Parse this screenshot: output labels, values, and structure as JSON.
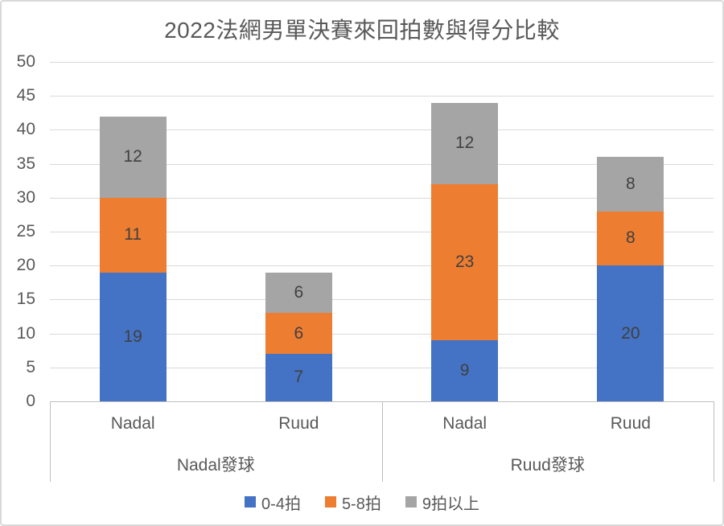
{
  "chart_data": {
    "type": "bar",
    "stacked": true,
    "title": "2022法網男單決賽來回拍數與得分比較",
    "grid": true,
    "legend_position": "bottom",
    "y_axis": {
      "min": 0,
      "max": 50,
      "step": 5,
      "ticks": [
        0,
        5,
        10,
        15,
        20,
        25,
        30,
        35,
        40,
        45,
        50
      ]
    },
    "groups": [
      {
        "label": "Nadal發球",
        "categories": [
          "Nadal",
          "Ruud"
        ]
      },
      {
        "label": "Ruud發球",
        "categories": [
          "Nadal",
          "Ruud"
        ]
      }
    ],
    "series": [
      {
        "name": "0-4拍",
        "color": "#4472C4",
        "values": [
          19,
          7,
          9,
          20
        ]
      },
      {
        "name": "5-8拍",
        "color": "#ED7D31",
        "values": [
          11,
          6,
          23,
          8
        ]
      },
      {
        "name": "9拍以上",
        "color": "#A5A5A5",
        "values": [
          12,
          6,
          12,
          8
        ]
      }
    ],
    "bar_totals": [
      42,
      19,
      44,
      36
    ]
  },
  "colors": {
    "series_blue": "#4472C4",
    "series_orange": "#ED7D31",
    "series_gray": "#A5A5A5",
    "gridline": "#D9D9D9",
    "axis_line": "#BFBFBF",
    "axis_text": "#595959",
    "data_label": "#404040",
    "title_text": "#595959"
  }
}
